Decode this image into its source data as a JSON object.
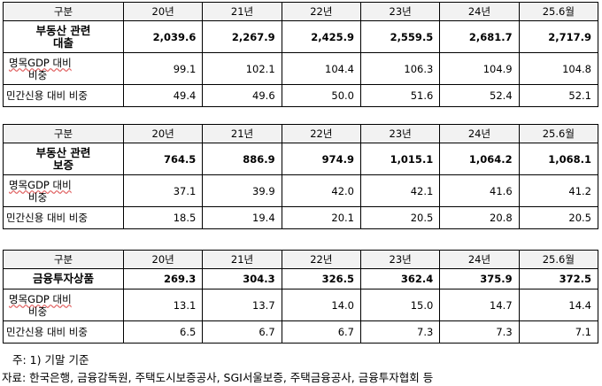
{
  "columns": [
    "20년",
    "21년",
    "22년",
    "23년",
    "24년",
    "25.6월"
  ],
  "corner_label": "구분",
  "tables": [
    {
      "main_label_line1": "부동산 관련",
      "main_label_line2": "대출",
      "main_values": [
        "2,039.6",
        "2,267.9",
        "2,425.9",
        "2,559.5",
        "2,681.7",
        "2,717.9"
      ],
      "gdp_label_line1": "명목GDP 대비",
      "gdp_label_line2": "비중",
      "gdp_values": [
        "99.1",
        "102.1",
        "104.4",
        "106.3",
        "104.9",
        "104.8"
      ],
      "priv_label": "민간신용 대비 비중",
      "priv_values": [
        "49.4",
        "49.6",
        "50.0",
        "51.6",
        "52.4",
        "52.1"
      ]
    },
    {
      "main_label_line1": "부동산 관련",
      "main_label_line2": "보증",
      "main_values": [
        "764.5",
        "886.9",
        "974.9",
        "1,015.1",
        "1,064.2",
        "1,068.1"
      ],
      "gdp_label_line1": "명목GDP 대비",
      "gdp_label_line2": "비중",
      "gdp_values": [
        "37.1",
        "39.9",
        "42.0",
        "42.1",
        "41.6",
        "41.2"
      ],
      "priv_label": "민간신용 대비 비중",
      "priv_values": [
        "18.5",
        "19.4",
        "20.1",
        "20.5",
        "20.8",
        "20.5"
      ]
    },
    {
      "main_label_line1": "금융투자상품",
      "main_label_line2": "",
      "main_values": [
        "269.3",
        "304.3",
        "326.5",
        "362.4",
        "375.9",
        "372.5"
      ],
      "gdp_label_line1": "명목GDP 대비",
      "gdp_label_line2": "비중",
      "gdp_values": [
        "13.1",
        "13.7",
        "14.0",
        "15.0",
        "14.7",
        "14.4"
      ],
      "priv_label": "민간신용 대비 비중",
      "priv_values": [
        "6.5",
        "6.7",
        "6.7",
        "7.3",
        "7.3",
        "7.1"
      ]
    }
  ],
  "notes": {
    "note1": "주: 1) 기말 기준",
    "source": "자료: 한국은행, 금융감독원, 주택도시보증공사, SGI서울보증, 주택금융공사, 금융투자협회 등"
  }
}
